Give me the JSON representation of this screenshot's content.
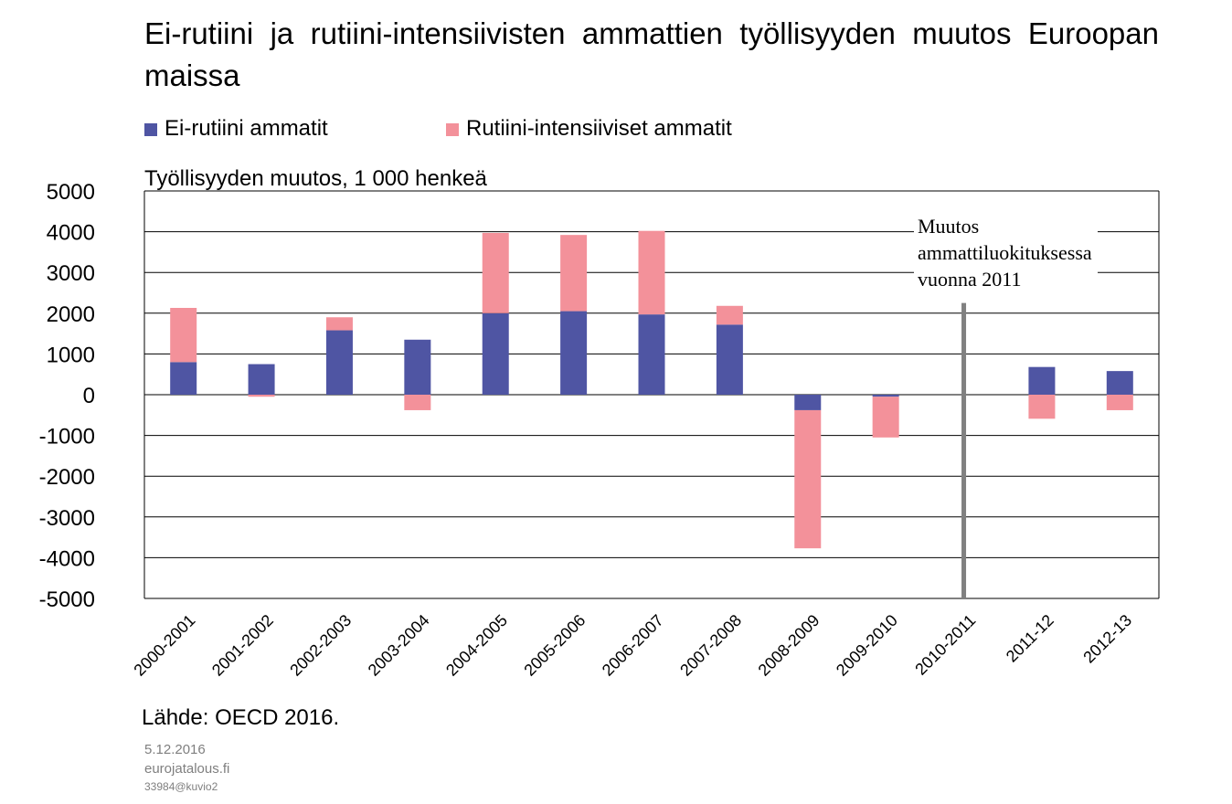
{
  "title": "Ei-rutiini ja rutiini-intensiivisten ammattien työllisyyden muutos Euroopan maissa",
  "legend": {
    "series_a": "Ei-rutiini ammatit",
    "series_b": "Rutiini-intensiiviset ammatit"
  },
  "ylabel": "Työllisyyden  muutos, 1 000 henkeä",
  "annotation": {
    "line1": "Muutos",
    "line2": "ammattiluokituksessa",
    "line3": "vuonna 2011"
  },
  "source": "Lähde: OECD 2016.",
  "footer": {
    "date": "5.12.2016",
    "site": "eurojatalous.fi",
    "code": "33984@kuvio2"
  },
  "colors": {
    "series_a": "#4f55a3",
    "series_b": "#f3919a",
    "divider": "#808080",
    "grid": "#000000"
  },
  "chart_data": {
    "type": "bar",
    "stacked": true,
    "categories": [
      "2000-2001",
      "2001-2002",
      "2002-2003",
      "2003-2004",
      "2004-2005",
      "2005-2006",
      "2006-2007",
      "2007-2008",
      "2008-2009",
      "2009-2010",
      "2010-2011",
      "2011-12",
      "2012-13"
    ],
    "series": [
      {
        "name": "Ei-rutiini ammatit",
        "values": [
          800,
          750,
          1580,
          1350,
          2000,
          2050,
          1970,
          1720,
          -380,
          -50,
          0,
          680,
          580
        ]
      },
      {
        "name": "Rutiini-intensiiviset ammatit",
        "values": [
          1330,
          -50,
          320,
          -380,
          1970,
          1870,
          2050,
          460,
          -3390,
          -1000,
          0,
          -590,
          -380
        ]
      }
    ],
    "ylim": [
      -5000,
      5000
    ],
    "yticks": [
      5000,
      4000,
      3000,
      2000,
      1000,
      0,
      -1000,
      -2000,
      -3000,
      -4000,
      -5000
    ],
    "divider_category": "2010-2011",
    "grid": true,
    "legend_position": "top"
  }
}
